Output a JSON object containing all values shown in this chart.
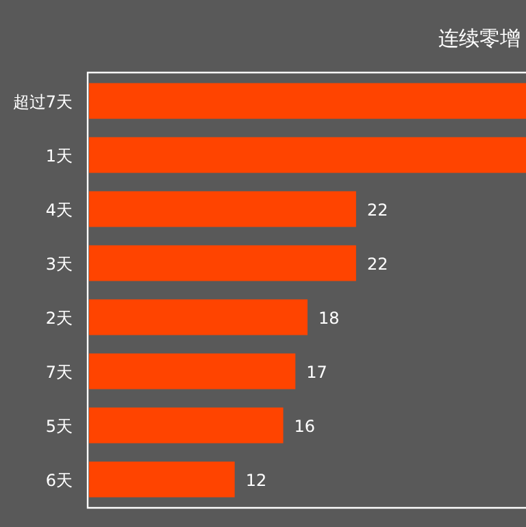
{
  "chart_data": {
    "type": "bar",
    "orientation": "horizontal",
    "title": "连续零增",
    "categories": [
      "超过7天",
      "1天",
      "4天",
      "3天",
      "2天",
      "7天",
      "5天",
      "6天"
    ],
    "values": [
      36,
      36,
      22,
      22,
      18,
      17,
      16,
      12
    ],
    "value_labels": [
      null,
      null,
      "22",
      "22",
      "18",
      "17",
      "16",
      "12"
    ],
    "color": "#ff4400",
    "xlim": [
      0,
      36
    ]
  }
}
